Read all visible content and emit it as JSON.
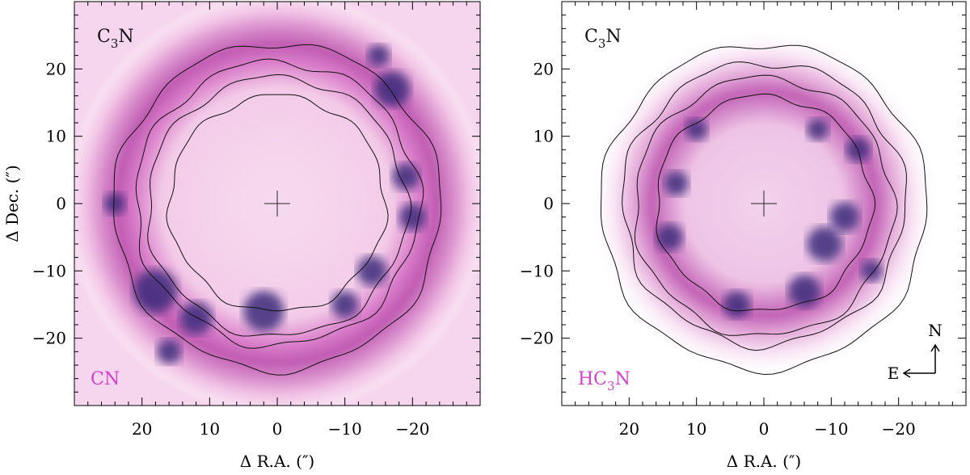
{
  "chart_data": [
    {
      "type": "heatmap",
      "panel": "left",
      "overlay_label": "C3N",
      "overlay_label_main": "C",
      "overlay_label_sub": "3",
      "overlay_label_end": "N",
      "map_label": "CN",
      "map_label_main": "CN",
      "map_label_sub": "",
      "map_label_end": "",
      "xlabel": "Δ R.A. (″)",
      "ylabel": "Δ Dec. (″)",
      "xlim": [
        30,
        -30
      ],
      "ylim": [
        -30,
        30
      ],
      "x_ticks": [
        20,
        10,
        0,
        -10,
        -20
      ],
      "x_tick_labels": [
        "20",
        "10",
        "0",
        "−10",
        "−20"
      ],
      "y_ticks": [
        20,
        10,
        0,
        -10,
        -20
      ],
      "y_tick_labels": [
        "20",
        "10",
        "0",
        "−10",
        "−20"
      ],
      "shell_radii_arcsec": [
        {
          "value": 16,
          "label": "inner contour"
        },
        {
          "value": 21,
          "label": "outer contour"
        },
        {
          "value": 25,
          "label": "outer emission shell"
        }
      ],
      "colormap": [
        "#ffffff",
        "#f3c6ea",
        "#c95db7",
        "#5a2f94",
        "#1f1a5c"
      ]
    },
    {
      "type": "heatmap",
      "panel": "right",
      "overlay_label": "C3N",
      "overlay_label_main": "C",
      "overlay_label_sub": "3",
      "overlay_label_end": "N",
      "map_label": "HC3N",
      "map_label_main": "HC",
      "map_label_sub": "3",
      "map_label_end": "N",
      "xlabel": "Δ R.A. (″)",
      "ylabel": "",
      "xlim": [
        30,
        -30
      ],
      "ylim": [
        -30,
        30
      ],
      "x_ticks": [
        20,
        10,
        0,
        -10,
        -20
      ],
      "x_tick_labels": [
        "20",
        "10",
        "0",
        "−10",
        "−20"
      ],
      "y_ticks": [
        20,
        10,
        0,
        -10,
        -20
      ],
      "y_tick_labels": [
        "20",
        "10",
        "0",
        "−10",
        "−20"
      ],
      "shell_radii_arcsec": [
        {
          "value": 13,
          "label": "HC3N emission ring"
        },
        {
          "value": 16,
          "label": "inner contour"
        },
        {
          "value": 21,
          "label": "outer contour"
        }
      ],
      "colormap": [
        "#ffffff",
        "#f3c6ea",
        "#c95db7",
        "#5a2f94",
        "#1f1a5c"
      ],
      "compass": {
        "north": "N",
        "east": "E"
      }
    }
  ]
}
